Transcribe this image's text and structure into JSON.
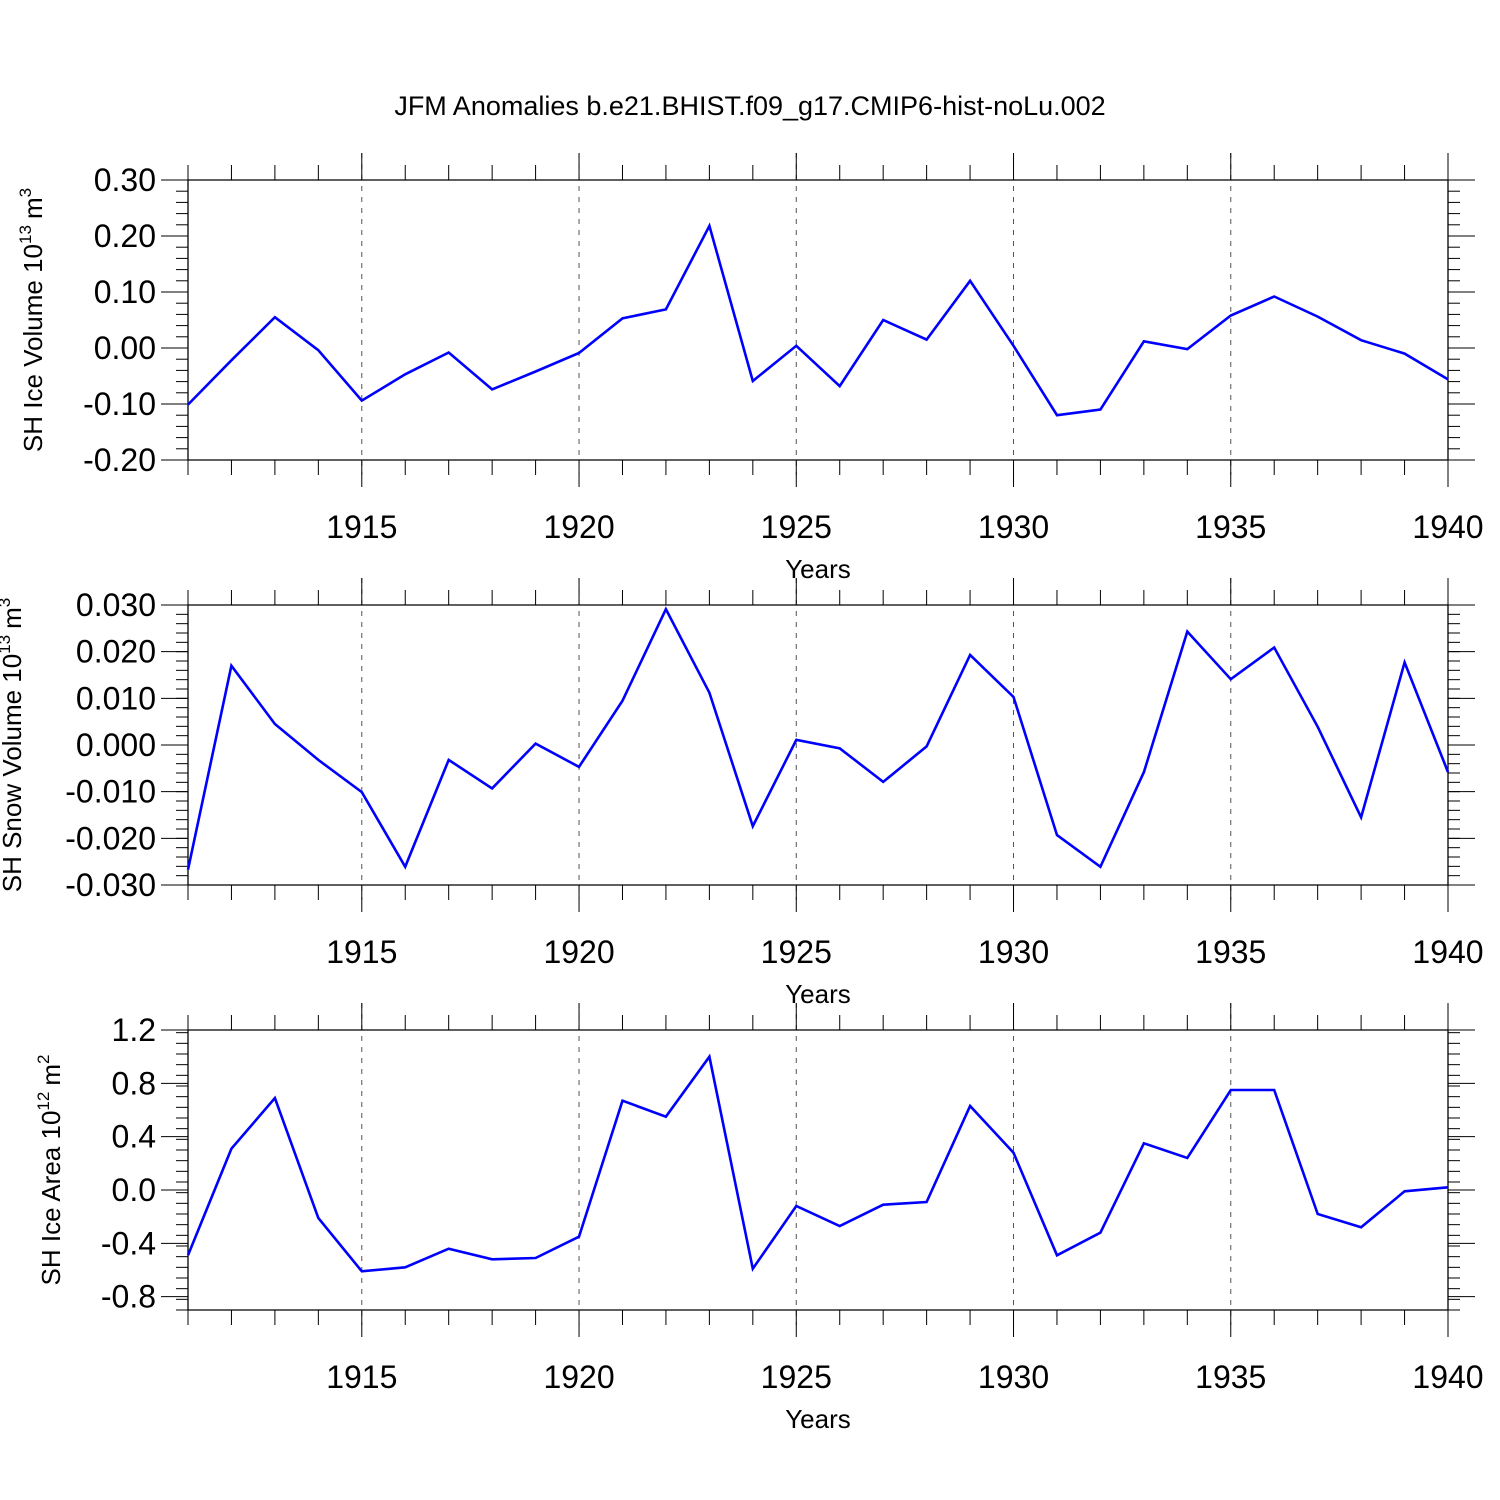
{
  "title": "JFM Anomalies b.e21.BHIST.f09_g17.CMIP6-hist-noLu.002",
  "colors": {
    "line": "#0000ff",
    "axis": "#000000",
    "grid": "#555555",
    "background": "#ffffff"
  },
  "chart_data": [
    {
      "type": "line",
      "ylabel": {
        "text": "SH Ice Volume 10",
        "sup": "13",
        "unit": "m",
        "unit_sup": "3"
      },
      "xlabel": "Years",
      "xlim": [
        1911,
        1940
      ],
      "ylim": [
        -0.2,
        0.3
      ],
      "yticks": [
        "0.30",
        "0.20",
        "0.10",
        "0.00",
        "-0.10",
        "-0.20"
      ],
      "xticks": [
        "1915",
        "1920",
        "1925",
        "1930",
        "1935",
        "1940"
      ],
      "grid": "vertical dashed lines at labeled years",
      "x": [
        1911,
        1912,
        1913,
        1914,
        1915,
        1916,
        1917,
        1918,
        1919,
        1920,
        1921,
        1922,
        1923,
        1924,
        1925,
        1926,
        1927,
        1928,
        1929,
        1930,
        1931,
        1932,
        1933,
        1934,
        1935,
        1936,
        1937,
        1938,
        1939,
        1940
      ],
      "series": [
        {
          "values": [
            -0.101,
            -0.022,
            0.055,
            -0.004,
            -0.094,
            -0.047,
            -0.008,
            -0.074,
            -0.042,
            -0.009,
            0.053,
            0.069,
            0.218,
            -0.059,
            0.004,
            -0.068,
            0.05,
            0.015,
            0.12,
            0.004,
            -0.12,
            -0.11,
            0.012,
            -0.002,
            0.058,
            0.092,
            0.056,
            0.014,
            -0.01,
            -0.056
          ]
        }
      ]
    },
    {
      "type": "line",
      "ylabel": {
        "text": "SH Snow Volume 10",
        "sup": "13",
        "unit": "m",
        "unit_sup": "3"
      },
      "xlabel": "Years",
      "xlim": [
        1911,
        1940
      ],
      "ylim": [
        -0.03,
        0.03
      ],
      "yticks": [
        "0.030",
        "0.020",
        "0.010",
        "0.000",
        "-0.010",
        "-0.020",
        "-0.030"
      ],
      "xticks": [
        "1915",
        "1920",
        "1925",
        "1930",
        "1935",
        "1940"
      ],
      "grid": "vertical dashed lines at labeled years",
      "x": [
        1911,
        1912,
        1913,
        1914,
        1915,
        1916,
        1917,
        1918,
        1919,
        1920,
        1921,
        1922,
        1923,
        1924,
        1925,
        1926,
        1927,
        1928,
        1929,
        1930,
        1931,
        1932,
        1933,
        1934,
        1935,
        1936,
        1937,
        1938,
        1939,
        1940
      ],
      "series": [
        {
          "values": [
            -0.0267,
            0.017,
            0.0045,
            -0.0032,
            -0.0101,
            -0.0261,
            -0.0032,
            -0.0093,
            0.0003,
            -0.0047,
            0.0095,
            0.0291,
            0.0112,
            -0.0174,
            0.0011,
            -0.0007,
            -0.0079,
            -0.0003,
            0.0193,
            0.0103,
            -0.0193,
            -0.0261,
            -0.0058,
            0.0243,
            0.0141,
            0.0209,
            0.0039,
            -0.0155,
            0.0177,
            -0.0058
          ]
        }
      ]
    },
    {
      "type": "line",
      "ylabel": {
        "text": "SH Ice Area 10",
        "sup": "12",
        "unit": "m",
        "unit_sup": "2"
      },
      "xlabel": "Years",
      "xlim": [
        1911,
        1940
      ],
      "ylim": [
        -0.9,
        1.2
      ],
      "yticks": [
        "1.2",
        "0.8",
        "0.4",
        "0.0",
        "-0.4",
        "-0.8"
      ],
      "xticks": [
        "1915",
        "1920",
        "1925",
        "1930",
        "1935",
        "1940"
      ],
      "grid": "vertical dashed lines at labeled years",
      "x": [
        1911,
        1912,
        1913,
        1914,
        1915,
        1916,
        1917,
        1918,
        1919,
        1920,
        1921,
        1922,
        1923,
        1924,
        1925,
        1926,
        1927,
        1928,
        1929,
        1930,
        1931,
        1932,
        1933,
        1934,
        1935,
        1936,
        1937,
        1938,
        1939,
        1940
      ],
      "series": [
        {
          "values": [
            -0.49,
            0.31,
            0.69,
            -0.21,
            -0.61,
            -0.58,
            -0.44,
            -0.52,
            -0.51,
            -0.35,
            0.67,
            0.55,
            1.0,
            -0.59,
            -0.12,
            -0.27,
            -0.11,
            -0.09,
            0.63,
            0.28,
            -0.49,
            -0.32,
            0.35,
            0.24,
            0.75,
            0.75,
            -0.18,
            -0.28,
            -0.01,
            0.02
          ]
        }
      ]
    }
  ]
}
